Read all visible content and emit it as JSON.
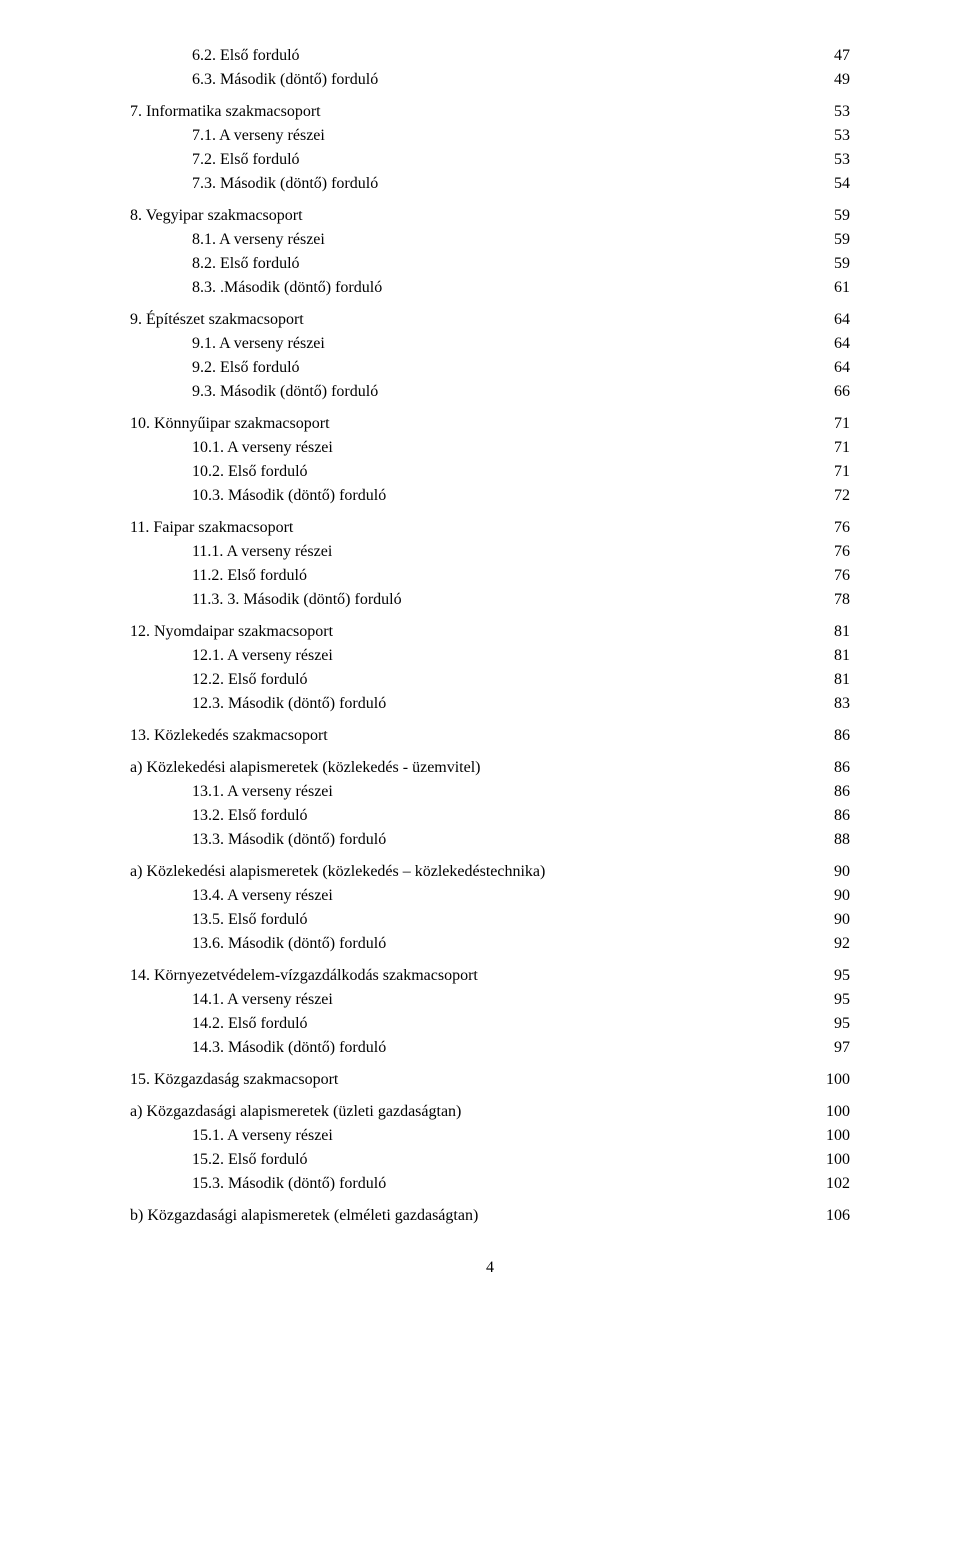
{
  "footer_page": "4",
  "entries": [
    {
      "label": "6.2.  Első forduló",
      "page": "47",
      "indent": 2,
      "gap_before": false
    },
    {
      "label": "6.3.  Második (döntő) forduló",
      "page": "49",
      "indent": 2,
      "gap_before": false
    },
    {
      "label": "7.    Informatika szakmacsoport",
      "page": "53",
      "indent": 0,
      "gap_before": true
    },
    {
      "label": "7.1.  A verseny részei",
      "page": "53",
      "indent": 2,
      "gap_before": false
    },
    {
      "label": "7.2.  Első forduló",
      "page": "53",
      "indent": 2,
      "gap_before": false
    },
    {
      "label": "7.3.  Második (döntő) forduló",
      "page": "54",
      "indent": 2,
      "gap_before": false
    },
    {
      "label": "8.    Vegyipar szakmacsoport",
      "page": "59",
      "indent": 0,
      "gap_before": true
    },
    {
      "label": "8.1.  A verseny részei",
      "page": "59",
      "indent": 2,
      "gap_before": false
    },
    {
      "label": "8.2.  Első forduló",
      "page": "59",
      "indent": 2,
      "gap_before": false
    },
    {
      "label": "8.3.  .Második (döntő) forduló",
      "page": "61",
      "indent": 2,
      "gap_before": false
    },
    {
      "label": "9.    Építészet szakmacsoport",
      "page": "64",
      "indent": 0,
      "gap_before": true
    },
    {
      "label": "9.1.  A verseny részei",
      "page": "64",
      "indent": 2,
      "gap_before": false
    },
    {
      "label": "9.2.  Első forduló",
      "page": "64",
      "indent": 2,
      "gap_before": false
    },
    {
      "label": "9.3.  Második (döntő) forduló",
      "page": "66",
      "indent": 2,
      "gap_before": false
    },
    {
      "label": "10.   Könnyűipar szakmacsoport",
      "page": "71",
      "indent": 0,
      "gap_before": true
    },
    {
      "label": "10.1. A verseny részei",
      "page": "71",
      "indent": 2,
      "gap_before": false
    },
    {
      "label": "10.2. Első forduló",
      "page": "71",
      "indent": 2,
      "gap_before": false
    },
    {
      "label": "10.3. Második (döntő) forduló",
      "page": "72",
      "indent": 2,
      "gap_before": false
    },
    {
      "label": "11.   Faipar szakmacsoport",
      "page": "76",
      "indent": 0,
      "gap_before": true
    },
    {
      "label": "11.1. A verseny részei",
      "page": "76",
      "indent": 2,
      "gap_before": false
    },
    {
      "label": "11.2. Első forduló",
      "page": "76",
      "indent": 2,
      "gap_before": false
    },
    {
      "label": "11.3. 3. Második (döntő) forduló",
      "page": "78",
      "indent": 2,
      "gap_before": false
    },
    {
      "label": "12.   Nyomdaipar szakmacsoport",
      "page": "81",
      "indent": 0,
      "gap_before": true
    },
    {
      "label": "12.1. A verseny részei",
      "page": "81",
      "indent": 2,
      "gap_before": false
    },
    {
      "label": "12.2. Első forduló",
      "page": "81",
      "indent": 2,
      "gap_before": false
    },
    {
      "label": "12.3. Második (döntő) forduló",
      "page": "83",
      "indent": 2,
      "gap_before": false
    },
    {
      "label": "13.   Közlekedés szakmacsoport",
      "page": "86",
      "indent": 0,
      "gap_before": true
    },
    {
      "label": "a) Közlekedési alapismeretek (közlekedés - üzemvitel)",
      "page": "86",
      "indent": 0,
      "gap_before": true
    },
    {
      "label": "13.1. A verseny részei",
      "page": "86",
      "indent": 2,
      "gap_before": false
    },
    {
      "label": "13.2. Első forduló",
      "page": "86",
      "indent": 2,
      "gap_before": false
    },
    {
      "label": "13.3. Második (döntő) forduló",
      "page": "88",
      "indent": 2,
      "gap_before": false
    },
    {
      "label": "a) Közlekedési alapismeretek (közlekedés – közlekedéstechnika)",
      "page": "90",
      "indent": 0,
      "gap_before": true
    },
    {
      "label": "13.4. A verseny részei",
      "page": "90",
      "indent": 2,
      "gap_before": false
    },
    {
      "label": "13.5. Első forduló",
      "page": "90",
      "indent": 2,
      "gap_before": false
    },
    {
      "label": "13.6. Második (döntő) forduló",
      "page": "92",
      "indent": 2,
      "gap_before": false
    },
    {
      "label": "14.   Környezetvédelem-vízgazdálkodás szakmacsoport",
      "page": "95",
      "indent": 0,
      "gap_before": true
    },
    {
      "label": "14.1. A verseny részei",
      "page": "95",
      "indent": 2,
      "gap_before": false
    },
    {
      "label": "14.2. Első forduló",
      "page": "95",
      "indent": 2,
      "gap_before": false
    },
    {
      "label": "14.3. Második (döntő) forduló",
      "page": "97",
      "indent": 2,
      "gap_before": false
    },
    {
      "label": "15.   Közgazdaság szakmacsoport",
      "page": "100",
      "indent": 0,
      "gap_before": true
    },
    {
      "label": "a) Közgazdasági alapismeretek (üzleti gazdaságtan)",
      "page": "100",
      "indent": 0,
      "gap_before": true
    },
    {
      "label": "15.1. A verseny részei",
      "page": "100",
      "indent": 2,
      "gap_before": false
    },
    {
      "label": "15.2. Első forduló",
      "page": "100",
      "indent": 2,
      "gap_before": false
    },
    {
      "label": "15.3. Második (döntő) forduló",
      "page": "102",
      "indent": 2,
      "gap_before": false
    },
    {
      "label": "b) Közgazdasági alapismeretek (elméleti gazdaságtan)",
      "page": "106",
      "indent": 0,
      "gap_before": true
    }
  ]
}
